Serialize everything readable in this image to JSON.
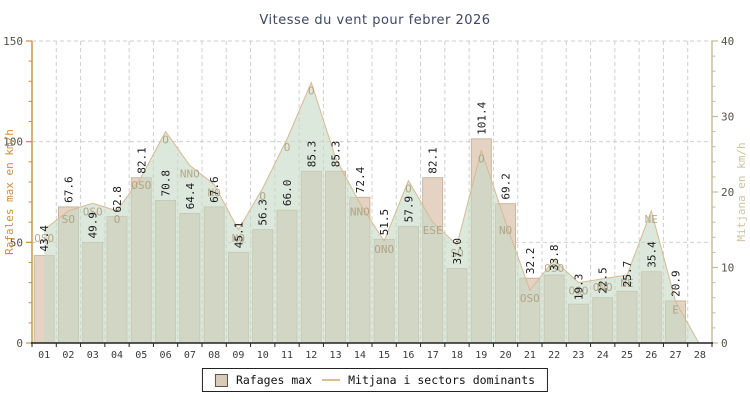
{
  "title": "Vitesse du vent pour febrer 2026",
  "legend": {
    "rafages_label": "Rafages max",
    "mitjana_label": "Mitjana i sectors dominants"
  },
  "axes": {
    "left": {
      "title": "Rafales max en km/h",
      "ticks": [
        0,
        50,
        100,
        150
      ],
      "lim": [
        0,
        150
      ],
      "minor_step": 10
    },
    "right": {
      "title": "Mitjana en km/h",
      "ticks": [
        0,
        10,
        20,
        30,
        40
      ],
      "lim": [
        0,
        40
      ],
      "minor_step": 2
    }
  },
  "chart_data": {
    "type": "bar",
    "title": "Vitesse du vent pour febrer 2026",
    "categories": [
      "01",
      "02",
      "03",
      "04",
      "05",
      "06",
      "07",
      "08",
      "09",
      "10",
      "11",
      "12",
      "13",
      "14",
      "15",
      "16",
      "17",
      "18",
      "19",
      "20",
      "21",
      "22",
      "23",
      "24",
      "25",
      "26",
      "27",
      "28"
    ],
    "series": [
      {
        "name": "Rafages max",
        "type": "bar",
        "axis": "left",
        "unit": "km/h",
        "values": [
          43.4,
          67.6,
          49.9,
          62.8,
          82.1,
          70.8,
          64.4,
          67.6,
          45.1,
          56.3,
          66.0,
          85.3,
          85.3,
          72.4,
          51.5,
          57.9,
          82.1,
          37.0,
          101.4,
          69.2,
          32.2,
          33.8,
          19.3,
          22.5,
          25.7,
          35.4,
          20.9,
          null
        ]
      },
      {
        "name": "Mitjana",
        "type": "area",
        "axis": "right",
        "unit": "km/h",
        "estimated": true,
        "values": [
          15,
          17.5,
          18.5,
          17.5,
          22,
          28,
          23.5,
          21,
          15,
          20.5,
          27,
          34.5,
          24.5,
          18.5,
          13.5,
          21.5,
          16,
          13,
          25.5,
          16,
          7,
          11,
          8,
          8.5,
          9,
          17.5,
          5.5,
          null
        ]
      },
      {
        "name": "Sectors dominants",
        "type": "text",
        "values": [
          "OSO",
          "SO",
          "OSO",
          "O",
          "OSO",
          "O",
          "NNO",
          "NO",
          "NO",
          "O",
          "O",
          "O",
          "",
          "NNO",
          "ONO",
          "O",
          "ESE",
          "SO",
          "O",
          "NO",
          "OSO",
          "OSO",
          "OSO",
          "ONO",
          "NE",
          "NE",
          "E",
          ""
        ]
      }
    ],
    "xlabel": "",
    "ylabel_left": "Rafales max en km/h",
    "ylabel_right": "Mitjana en km/h",
    "ylim_left": [
      0,
      150
    ],
    "ylim_right": [
      0,
      40
    ],
    "grid": "dashed, vertical per day + horizontal at 50/100/150",
    "legend_position": "bottom-center"
  },
  "colors": {
    "bar_fill": "#e4d3c2",
    "bar_border": "#c2ab93",
    "area_fill": "rgba(199,217,196,0.6)",
    "area_line": "#d8b993",
    "left_axis": "#c8913f",
    "right_axis": "#c6ba9b",
    "right_axis_title": "#cdc2a2",
    "tick_label": "#55524a",
    "x_label": "#3a3a3a",
    "x_axis": "#222222",
    "grid": "#cfcfcf",
    "title": "#3d4766",
    "value_label": "#1a1a1a",
    "direction_label": "rgba(172,156,122,0.85)",
    "legend_swatch": "#d9cbb8",
    "legend_line": "#d8bd98"
  }
}
